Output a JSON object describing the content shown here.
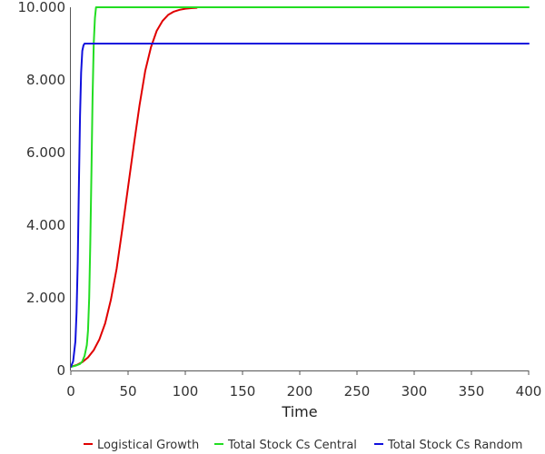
{
  "chart_data": {
    "type": "line",
    "title": "",
    "xlabel": "Time",
    "ylabel": "",
    "xlim": [
      0,
      400
    ],
    "ylim": [
      0,
      10000
    ],
    "x_ticks": [
      0,
      50,
      100,
      150,
      200,
      250,
      300,
      350,
      400
    ],
    "x_tick_labels": [
      "0",
      "50",
      "100",
      "150",
      "200",
      "250",
      "300",
      "350",
      "400"
    ],
    "y_ticks": [
      0,
      2000,
      4000,
      6000,
      8000,
      10000
    ],
    "y_tick_labels": [
      "0",
      "2.000",
      "4.000",
      "6.000",
      "8.000",
      "10.000"
    ],
    "grid": false,
    "legend_position": "bottom",
    "series": [
      {
        "name": "Logistical Growth",
        "color": "#e00000",
        "x": [
          0,
          5,
          10,
          15,
          20,
          25,
          30,
          35,
          40,
          45,
          50,
          55,
          60,
          65,
          70,
          75,
          80,
          85,
          90,
          95,
          100,
          105,
          110
        ],
        "values": [
          100,
          150,
          230,
          360,
          560,
          860,
          1300,
          1950,
          2800,
          3900,
          5050,
          6200,
          7300,
          8250,
          8900,
          9350,
          9620,
          9790,
          9880,
          9930,
          9960,
          9975,
          9985
        ]
      },
      {
        "name": "Total Stock Cs Central",
        "color": "#22dd22",
        "x": [
          0,
          4,
          8,
          10,
          12,
          14,
          15,
          16,
          17,
          18,
          19,
          20,
          21,
          22,
          400
        ],
        "values": [
          100,
          130,
          180,
          250,
          400,
          700,
          1100,
          2000,
          3500,
          5500,
          7500,
          9000,
          9700,
          10000,
          10000
        ]
      },
      {
        "name": "Total Stock Cs Random",
        "color": "#1010dd",
        "x": [
          0,
          2,
          4,
          5,
          6,
          7,
          8,
          9,
          10,
          11,
          12,
          13,
          400
        ],
        "values": [
          100,
          250,
          800,
          1600,
          3000,
          5000,
          7000,
          8200,
          8800,
          8950,
          9000,
          9000,
          9000
        ]
      }
    ]
  }
}
